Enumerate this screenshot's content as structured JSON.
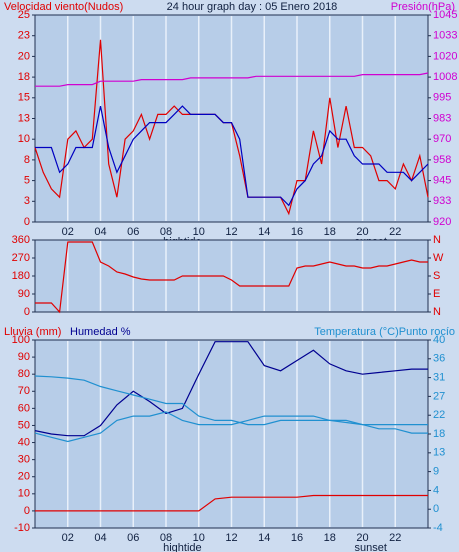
{
  "chart_data": [
    {
      "type": "line",
      "title": "24 hour graph day : 05 Enero 2018",
      "y_label": "Velocidad viento(Nudos)",
      "y2_label": "Presión(hPa)",
      "ytick_color": "#e00000",
      "y2tick_color": "#d000d0",
      "xlim": [
        0,
        24
      ],
      "xticks": [
        {
          "value": 2,
          "label": "02"
        },
        {
          "value": 4,
          "label": "04"
        },
        {
          "value": 6,
          "label": "06"
        },
        {
          "value": 8,
          "label": "08"
        },
        {
          "value": 10,
          "label": "10"
        },
        {
          "value": 12,
          "label": "12"
        },
        {
          "value": 14,
          "label": "14"
        },
        {
          "value": 16,
          "label": "16"
        },
        {
          "value": 18,
          "label": "18"
        },
        {
          "value": 20,
          "label": "20"
        },
        {
          "value": 22,
          "label": "22"
        }
      ],
      "annotations": [
        {
          "x": 9,
          "text": "hightide"
        },
        {
          "x": 20.5,
          "text": "sunset"
        }
      ],
      "ylim": [
        0,
        25
      ],
      "yticks": [
        0,
        {
          "value": 2.5,
          "label": "3"
        },
        5,
        {
          "value": 7.5,
          "label": "8"
        },
        10,
        {
          "value": 12.5,
          "label": "13"
        },
        15,
        {
          "value": 17.5,
          "label": "18"
        },
        20,
        {
          "value": 22.5,
          "label": "23"
        },
        25
      ],
      "y2lim": [
        920,
        1045
      ],
      "y2ticks": [
        920,
        {
          "value": 932.5,
          "label": "933"
        },
        945,
        {
          "value": 957.5,
          "label": "958"
        },
        970,
        {
          "value": 982.5,
          "label": "983"
        },
        995,
        {
          "value": 1007.5,
          "label": "1008"
        },
        1020,
        {
          "value": 1032.5,
          "label": "1033"
        },
        1045
      ],
      "x": [
        0,
        0.5,
        1,
        1.5,
        2,
        2.5,
        3,
        3.5,
        4,
        4.5,
        5,
        5.5,
        6,
        6.5,
        7,
        7.5,
        8,
        8.5,
        9,
        9.5,
        10,
        10.5,
        11,
        11.5,
        12,
        12.5,
        13,
        13.5,
        14,
        14.5,
        15,
        15.5,
        16,
        16.5,
        17,
        17.5,
        18,
        18.5,
        19,
        19.5,
        20,
        20.5,
        21,
        21.5,
        22,
        22.5,
        23,
        23.5,
        24
      ],
      "series": [
        {
          "color": "#e00000",
          "values": [
            9,
            6,
            4,
            3,
            10,
            11,
            9,
            10,
            22,
            7,
            3,
            10,
            11,
            13,
            10,
            13,
            13,
            14,
            13,
            13,
            13,
            13,
            13,
            12,
            12,
            8,
            3,
            3,
            3,
            3,
            3,
            1,
            5,
            5,
            11,
            7,
            15,
            9,
            14,
            9,
            9,
            8,
            5,
            5,
            4,
            7,
            5,
            8,
            3
          ]
        },
        {
          "color": "#0000c0",
          "values": [
            9,
            9,
            9,
            6,
            7,
            9,
            9,
            9,
            14,
            9,
            6,
            8,
            10,
            11,
            12,
            12,
            12,
            13,
            14,
            13,
            13,
            13,
            13,
            12,
            12,
            10,
            3,
            3,
            3,
            3,
            3,
            2,
            4,
            5,
            7,
            8,
            11,
            10,
            10,
            8,
            7,
            7,
            7,
            6,
            6,
            6,
            5,
            6,
            7
          ]
        },
        {
          "color": "#d000d0",
          "axis": "y2",
          "values": [
            1002,
            1002,
            1002,
            1002,
            1003,
            1003,
            1003,
            1003,
            1005,
            1005,
            1005,
            1005,
            1005,
            1006,
            1006,
            1006,
            1006,
            1006,
            1006,
            1007,
            1007,
            1007,
            1007,
            1007,
            1007,
            1007,
            1007,
            1008,
            1008,
            1008,
            1008,
            1008,
            1008,
            1008,
            1008,
            1008,
            1008,
            1008,
            1008,
            1008,
            1009,
            1009,
            1009,
            1009,
            1009,
            1009,
            1009,
            1009,
            1010
          ]
        }
      ]
    },
    {
      "type": "line",
      "ytick_color": "#e00000",
      "y2tick_color": "#e00000",
      "xlim": [
        0,
        24
      ],
      "xgrid": [
        2,
        4,
        6,
        8,
        10,
        12,
        14,
        16,
        18,
        20,
        22
      ],
      "ylim": [
        0,
        360
      ],
      "yticks": [
        0,
        90,
        180,
        270,
        360
      ],
      "y2lim": [
        0,
        360
      ],
      "y2ticks": [
        {
          "value": 0,
          "label": "N"
        },
        {
          "value": 90,
          "label": "E"
        },
        {
          "value": 180,
          "label": "S"
        },
        {
          "value": 270,
          "label": "W"
        },
        {
          "value": 360,
          "label": "N"
        }
      ],
      "x": [
        0,
        0.5,
        1,
        1.5,
        2,
        2.5,
        3,
        3.5,
        4,
        4.5,
        5,
        5.5,
        6,
        6.5,
        7,
        7.5,
        8,
        8.5,
        9,
        9.5,
        10,
        10.5,
        11,
        11.5,
        12,
        12.5,
        13,
        13.5,
        14,
        14.5,
        15,
        15.5,
        16,
        16.5,
        17,
        17.5,
        18,
        18.5,
        19,
        19.5,
        20,
        20.5,
        21,
        21.5,
        22,
        22.5,
        23,
        23.5,
        24
      ],
      "series": [
        {
          "color": "#e00000",
          "values": [
            45,
            45,
            45,
            0,
            350,
            350,
            350,
            350,
            250,
            230,
            200,
            190,
            175,
            165,
            160,
            160,
            160,
            160,
            180,
            180,
            180,
            180,
            180,
            180,
            160,
            130,
            130,
            130,
            130,
            130,
            130,
            130,
            220,
            230,
            230,
            240,
            250,
            240,
            230,
            230,
            220,
            220,
            230,
            230,
            240,
            250,
            260,
            250,
            250
          ]
        }
      ]
    },
    {
      "type": "line",
      "y2_label": "Temperatura (°C)Punto rocío",
      "ytick_color": "#e00000",
      "y2tick_color": "#2090d0",
      "xlim": [
        0,
        24
      ],
      "xticks": [
        {
          "value": 2,
          "label": "02"
        },
        {
          "value": 4,
          "label": "04"
        },
        {
          "value": 6,
          "label": "06"
        },
        {
          "value": 8,
          "label": "08"
        },
        {
          "value": 10,
          "label": "10"
        },
        {
          "value": 12,
          "label": "12"
        },
        {
          "value": 14,
          "label": "14"
        },
        {
          "value": 16,
          "label": "16"
        },
        {
          "value": 18,
          "label": "18"
        },
        {
          "value": 20,
          "label": "20"
        },
        {
          "value": 22,
          "label": "22"
        }
      ],
      "annotations": [
        {
          "x": 9,
          "text": "hightide"
        },
        {
          "x": 20.5,
          "text": "sunset"
        }
      ],
      "ylim": [
        -10,
        100
      ],
      "yticks": [
        -10,
        0,
        10,
        20,
        30,
        40,
        50,
        60,
        70,
        80,
        90,
        100
      ],
      "y2lim": [
        -4.44,
        40
      ],
      "y2ticks": [
        {
          "value": -4.44,
          "label": "-4"
        },
        0,
        {
          "value": 4.44,
          "label": "4"
        },
        {
          "value": 8.89,
          "label": "9"
        },
        {
          "value": 13.33,
          "label": "13"
        },
        {
          "value": 17.78,
          "label": "18"
        },
        {
          "value": 22.22,
          "label": "22"
        },
        {
          "value": 26.67,
          "label": "27"
        },
        {
          "value": 31.11,
          "label": "31"
        },
        {
          "value": 35.56,
          "label": "36"
        },
        40
      ],
      "x": [
        0,
        1,
        2,
        3,
        4,
        5,
        6,
        7,
        8,
        9,
        10,
        11,
        12,
        13,
        14,
        15,
        16,
        17,
        18,
        19,
        20,
        21,
        22,
        23,
        24
      ],
      "series": [
        {
          "name": "Lluvia (mm)",
          "color": "#e00000",
          "values": [
            0,
            0,
            0,
            0,
            0,
            0,
            0,
            0,
            0,
            0,
            0,
            7,
            8,
            8,
            8,
            8,
            8,
            9,
            9,
            9,
            9,
            9,
            9,
            9,
            9
          ]
        },
        {
          "name": "Humedad %",
          "color": "#000090",
          "values": [
            47,
            45,
            44,
            44,
            50,
            62,
            70,
            64,
            57,
            60,
            80,
            99,
            99,
            99,
            85,
            82,
            88,
            94,
            86,
            82,
            80,
            81,
            82,
            83,
            83
          ]
        },
        {
          "color": "#2090d0",
          "axis": "y2",
          "values": [
            31.5,
            31.3,
            31,
            30.5,
            29,
            28,
            27,
            26,
            25,
            25,
            22,
            21,
            21,
            20,
            20,
            21,
            21,
            21,
            21,
            20.5,
            20,
            20,
            20,
            20,
            20
          ]
        },
        {
          "color": "#2090d0",
          "axis": "y2",
          "values": [
            18,
            17,
            16,
            17,
            18,
            21,
            22,
            22,
            23,
            21,
            20,
            20,
            20,
            21,
            22,
            22,
            22,
            22,
            21,
            21,
            20,
            19,
            19,
            18,
            18
          ]
        }
      ]
    }
  ]
}
